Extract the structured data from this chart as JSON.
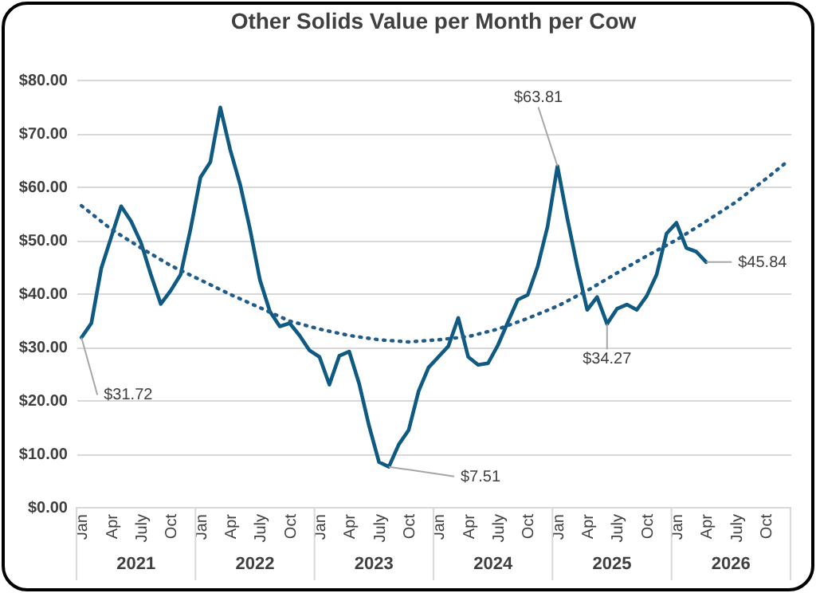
{
  "chart_data": {
    "type": "line",
    "title": "Other Solids Value per Month per Cow",
    "categories": [
      "Jan",
      null,
      null,
      "Apr",
      null,
      null,
      "July",
      null,
      null,
      "Oct",
      null,
      null,
      "Jan",
      null,
      null,
      "Apr",
      null,
      null,
      "July",
      null,
      null,
      "Oct",
      null,
      null,
      "Jan",
      null,
      null,
      "Apr",
      null,
      null,
      "July",
      null,
      null,
      "Oct",
      null,
      null,
      "Jan",
      null,
      null,
      "Apr",
      null,
      null,
      "July",
      null,
      null,
      "Oct",
      null,
      null,
      "Jan",
      null,
      null,
      "Apr",
      null,
      null,
      "July",
      null,
      null,
      "Oct",
      null,
      null,
      "Jan",
      null,
      null,
      "Apr",
      null,
      null,
      "July",
      null,
      null,
      "Oct",
      null,
      null
    ],
    "annotations": [
      "2021",
      "2022",
      "2023",
      "2024",
      "2025",
      "2026"
    ],
    "ylim": [
      0,
      80
    ],
    "yticks": [
      {
        "value": 0,
        "label": "$0.00"
      },
      {
        "value": 10,
        "label": "$10.00"
      },
      {
        "value": 20,
        "label": "$20.00"
      },
      {
        "value": 30,
        "label": "$30.00"
      },
      {
        "value": 40,
        "label": "$40.00"
      },
      {
        "value": 50,
        "label": "$50.00"
      },
      {
        "value": 60,
        "label": "$60.00"
      },
      {
        "value": 70,
        "label": "$70.00"
      },
      {
        "value": 80,
        "label": "$80.00"
      }
    ],
    "grid": "y",
    "series": [
      {
        "color": "#0f5a82",
        "line_style": "solid",
        "values": [
          31.72,
          34.4,
          44.7,
          50.5,
          56.3,
          53.5,
          49.5,
          43.5,
          38,
          40.5,
          43.5,
          52,
          61.7,
          64.6,
          74.8,
          66.9,
          60.4,
          52,
          42.5,
          36.6,
          33.8,
          34.4,
          32.1,
          29.3,
          28.1,
          22.9,
          28.3,
          29.1,
          23.1,
          15.2,
          8.4,
          7.51,
          11.7,
          14.4,
          21.7,
          26.1,
          28.1,
          30.1,
          35.4,
          28.1,
          26.6,
          26.9,
          30.3,
          34.6,
          38.8,
          39.7,
          45,
          52.5,
          63.81,
          54,
          45,
          36.9,
          39.3,
          34.27,
          37.1,
          37.9,
          36.9,
          39.5,
          43.5,
          51.2,
          53.2,
          48.5,
          47.8,
          45.84,
          null,
          null,
          null,
          null,
          null,
          null,
          null,
          null
        ],
        "value_labels": [
          "$31.72",
          null,
          null,
          null,
          null,
          null,
          null,
          null,
          null,
          null,
          null,
          null,
          null,
          null,
          null,
          null,
          null,
          null,
          null,
          null,
          null,
          null,
          null,
          null,
          null,
          null,
          null,
          null,
          null,
          null,
          null,
          "$7.51",
          null,
          null,
          null,
          null,
          null,
          null,
          null,
          null,
          null,
          null,
          null,
          null,
          null,
          null,
          null,
          null,
          "$63.81",
          null,
          null,
          null,
          null,
          "$34.27",
          null,
          null,
          null,
          null,
          null,
          null,
          null,
          null,
          null,
          "$45.84",
          null,
          null,
          null,
          null,
          null,
          null,
          null,
          null
        ]
      },
      {
        "type": "line",
        "color": "#1f5c8a",
        "line_style": "dotted",
        "values": [
          56.4,
          null,
          null,
          52,
          null,
          null,
          48.5,
          null,
          null,
          45.2,
          null,
          null,
          42.5,
          null,
          null,
          39.8,
          null,
          null,
          37.3,
          null,
          null,
          34.8,
          null,
          null,
          33.3,
          null,
          null,
          32.1,
          null,
          null,
          31.3,
          null,
          null,
          30.9,
          null,
          null,
          31.3,
          null,
          null,
          31.9,
          null,
          null,
          33.3,
          null,
          null,
          35.3,
          null,
          null,
          37.6,
          null,
          null,
          40.5,
          null,
          null,
          43.8,
          null,
          null,
          47,
          null,
          null,
          50,
          null,
          null,
          53.5,
          null,
          null,
          57.1,
          null,
          null,
          61.4,
          null,
          64.4
        ]
      }
    ]
  }
}
